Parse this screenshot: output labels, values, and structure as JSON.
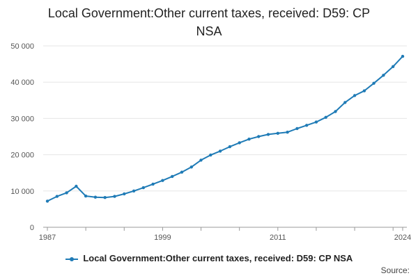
{
  "chart_data": {
    "type": "line",
    "title_line1": "Local Government:Other current taxes, received: D59: CP",
    "title_line2": "NSA",
    "x_tick_labels": [
      "1987",
      "1999",
      "2011",
      "2024"
    ],
    "y_tick_labels": [
      "0",
      "10 000",
      "20 000",
      "30 000",
      "40 000",
      "50 000"
    ],
    "ylim": [
      0,
      50000
    ],
    "xlim": [
      1987,
      2024
    ],
    "grid": true,
    "legend_position": "bottom",
    "series": [
      {
        "name": "Local Government:Other current taxes, received: D59: CP NSA",
        "color": "#1f7bb6",
        "x": [
          1987,
          1988,
          1989,
          1990,
          1991,
          1992,
          1993,
          1994,
          1995,
          1996,
          1997,
          1998,
          1999,
          2000,
          2001,
          2002,
          2003,
          2004,
          2005,
          2006,
          2007,
          2008,
          2009,
          2010,
          2011,
          2012,
          2013,
          2014,
          2015,
          2016,
          2017,
          2018,
          2019,
          2020,
          2021,
          2022,
          2023,
          2024
        ],
        "values": [
          7200,
          8500,
          9500,
          11300,
          8600,
          8300,
          8200,
          8500,
          9200,
          10000,
          10900,
          11900,
          12900,
          14000,
          15200,
          16600,
          18500,
          19900,
          21000,
          22200,
          23300,
          24300,
          25000,
          25600,
          25900,
          26200,
          27200,
          28100,
          29000,
          30300,
          31900,
          34400,
          36300,
          37600,
          39700,
          41900,
          44300,
          47100
        ]
      }
    ]
  },
  "legend": {
    "label": "Local Government:Other current taxes, received: D59: CP NSA"
  },
  "source": {
    "label": "Source:"
  }
}
